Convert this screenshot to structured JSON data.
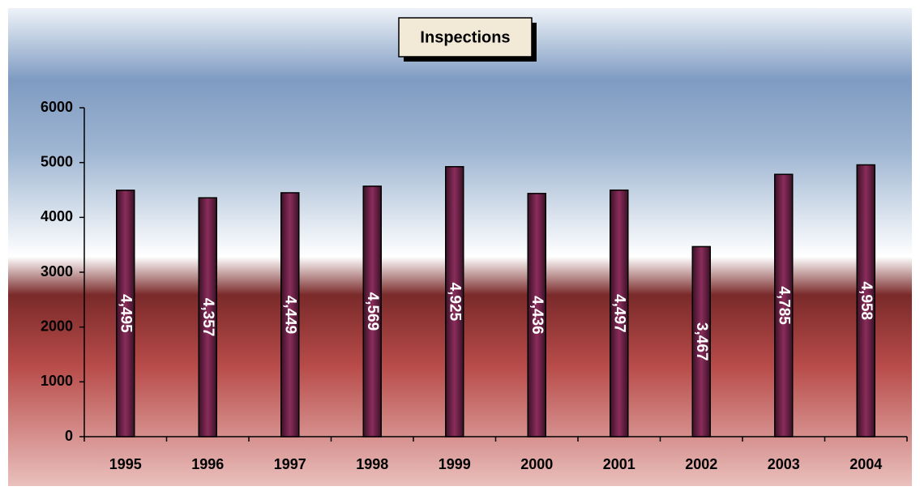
{
  "chart_data": {
    "type": "bar",
    "title": "Inspections",
    "categories": [
      "1995",
      "1996",
      "1997",
      "1998",
      "1999",
      "2000",
      "2001",
      "2002",
      "2003",
      "2004"
    ],
    "values": [
      4495,
      4357,
      4449,
      4569,
      4925,
      4436,
      4497,
      3467,
      4785,
      4958
    ],
    "value_labels": [
      "4,495",
      "4,357",
      "4,449",
      "4,569",
      "4,925",
      "4,436",
      "4,497",
      "3,467",
      "4,785",
      "4,958"
    ],
    "color": "#8b2d5c",
    "ylim": [
      0,
      6000
    ],
    "yticks": [
      0,
      1000,
      2000,
      3000,
      4000,
      5000,
      6000
    ],
    "grid": false
  }
}
